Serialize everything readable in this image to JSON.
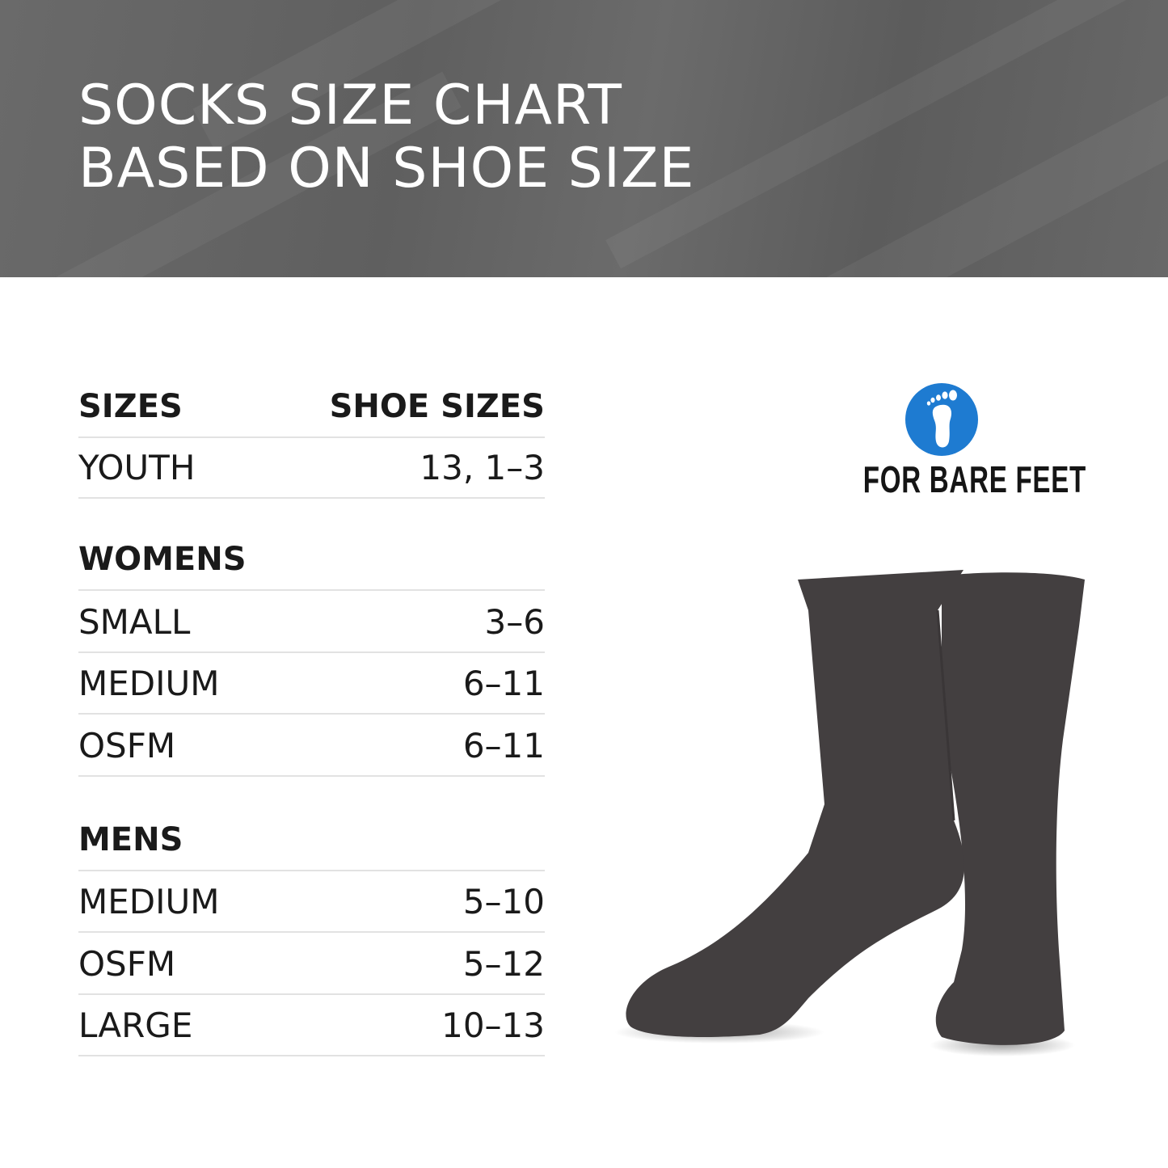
{
  "header": {
    "title_line1": "SOCKS SIZE CHART",
    "title_line2": "BASED ON SHOE SIZE"
  },
  "table": {
    "headers": {
      "sizes": "SIZES",
      "shoe_sizes": "SHOE SIZES"
    },
    "youth": {
      "label": "YOUTH",
      "value": "13, 1–3"
    },
    "womens": {
      "heading": "WOMENS",
      "rows": [
        {
          "label": "SMALL",
          "value": "3–6"
        },
        {
          "label": "MEDIUM",
          "value": "6–11"
        },
        {
          "label": "OSFM",
          "value": "6–11"
        }
      ]
    },
    "mens": {
      "heading": "MENS",
      "rows": [
        {
          "label": "MEDIUM",
          "value": "5–10"
        },
        {
          "label": "OSFM",
          "value": "5–12"
        },
        {
          "label": "LARGE",
          "value": "10–13"
        }
      ]
    }
  },
  "logo": {
    "text": "FOR BARE FEET",
    "icon": "foot-icon",
    "color": "#1e7bd1"
  },
  "product": {
    "sock_color": "#433f40"
  }
}
